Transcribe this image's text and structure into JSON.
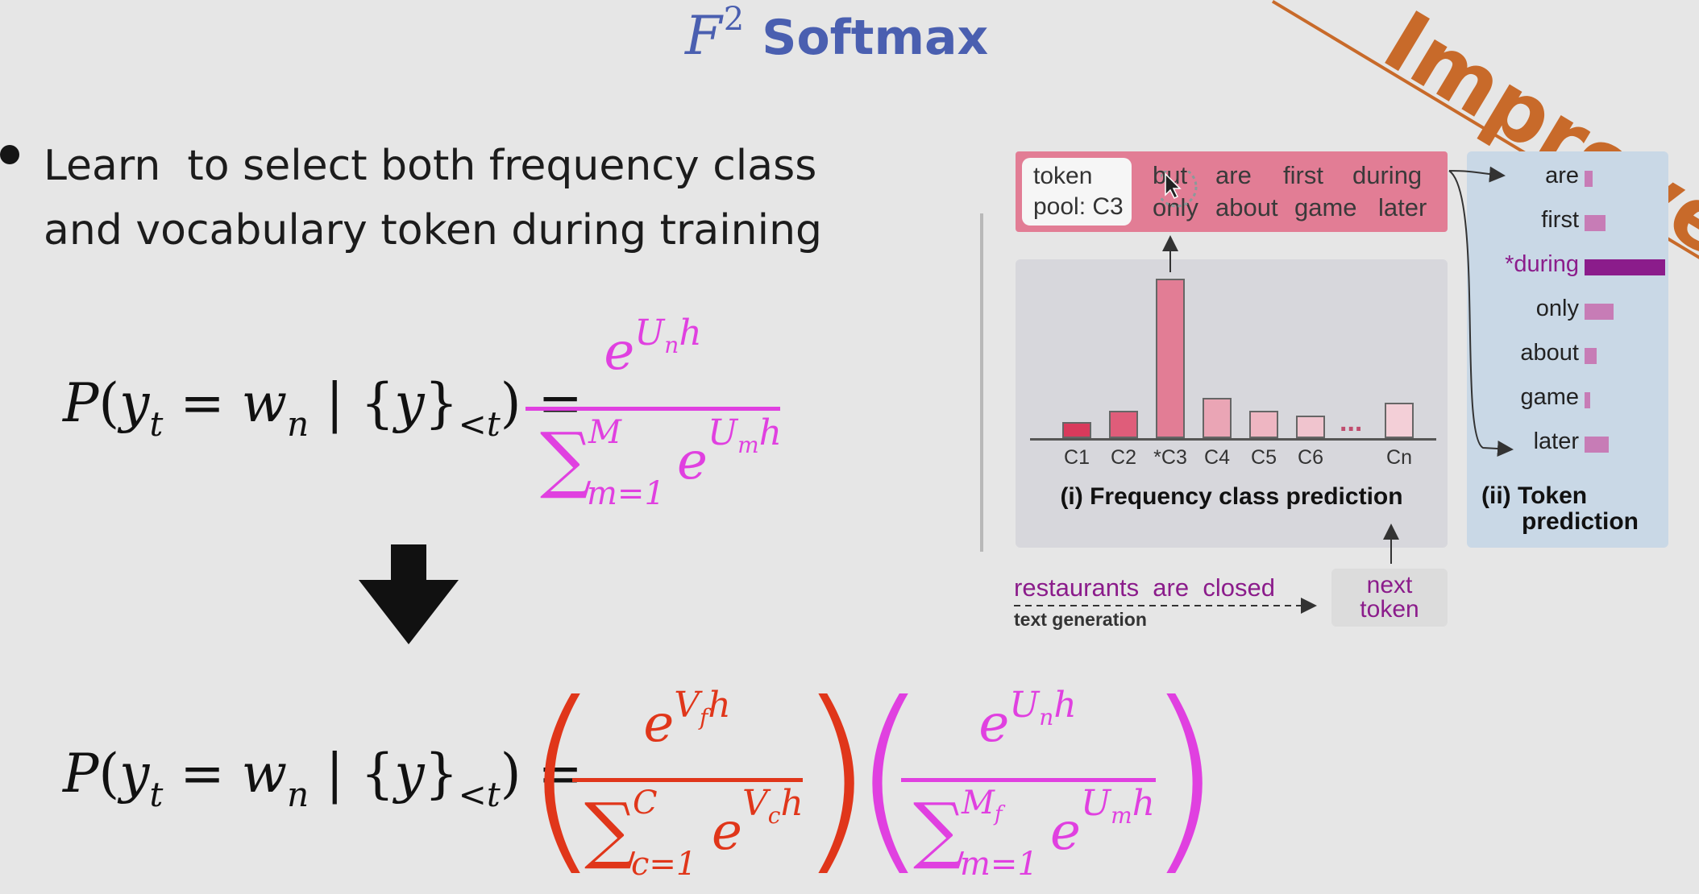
{
  "title": {
    "math": "F",
    "superscript": "2",
    "text": "Softmax"
  },
  "banner_text": "Improved",
  "bullet": {
    "line1": "Learn  to select both frequency class",
    "line2": "and vocabulary token during training"
  },
  "equation1": {
    "lhs": "P(y_t = w_n | {y}_<t) =",
    "numerator": "e^{U_n h}",
    "denominator": "Σ_{m=1}^{M} e^{U_m h}"
  },
  "equation2": {
    "lhs": "P(y_t = w_n | {y}_<t) =",
    "frac1_numerator": "e^{V_f h}",
    "frac1_denominator": "Σ_{c=1}^{C} e^{V_c h}",
    "frac2_numerator": "e^{U_n h}",
    "frac2_denominator": "Σ_{m=1}^{M_f} e^{U_m h}"
  },
  "colors": {
    "title": "#4a5fb0",
    "magenta": "#e040e0",
    "red": "#e0361a",
    "banner": "#c86a2a"
  },
  "figure": {
    "pool_label_line1": "token",
    "pool_label_line2": "pool: C3",
    "pool_words_row1": [
      "but",
      "are",
      "first",
      "during"
    ],
    "pool_words_row2": [
      "only",
      "about",
      "game",
      "later"
    ],
    "freq_title": "(i) Frequency class prediction",
    "token_title_line1": "(ii) Token",
    "token_title_line2": "prediction",
    "input_words": "restaurants  are  closed",
    "generation_label": "text generation",
    "next_token_line1": "next",
    "next_token_line2": "token",
    "ellipsis": "...",
    "freq_chart": {
      "type": "bar",
      "categories": [
        "C1",
        "C2",
        "*C3",
        "C4",
        "C5",
        "C6",
        "Cn"
      ],
      "values": [
        0.1,
        0.17,
        0.99,
        0.25,
        0.17,
        0.14,
        0.22
      ],
      "colors": [
        "#d93a5c",
        "#df5d7a",
        "#e27d95",
        "#eaa5b5",
        "#eeb6c2",
        "#f0c4ce",
        "#f3cfd7"
      ]
    },
    "token_chart": {
      "type": "bar",
      "categories": [
        "are",
        "first",
        "*during",
        "only",
        "about",
        "game",
        "later"
      ],
      "values": [
        0.1,
        0.26,
        1.0,
        0.36,
        0.15,
        0.07,
        0.3
      ],
      "highlight": "*during",
      "highlight_color": "#8b1c8b"
    }
  }
}
